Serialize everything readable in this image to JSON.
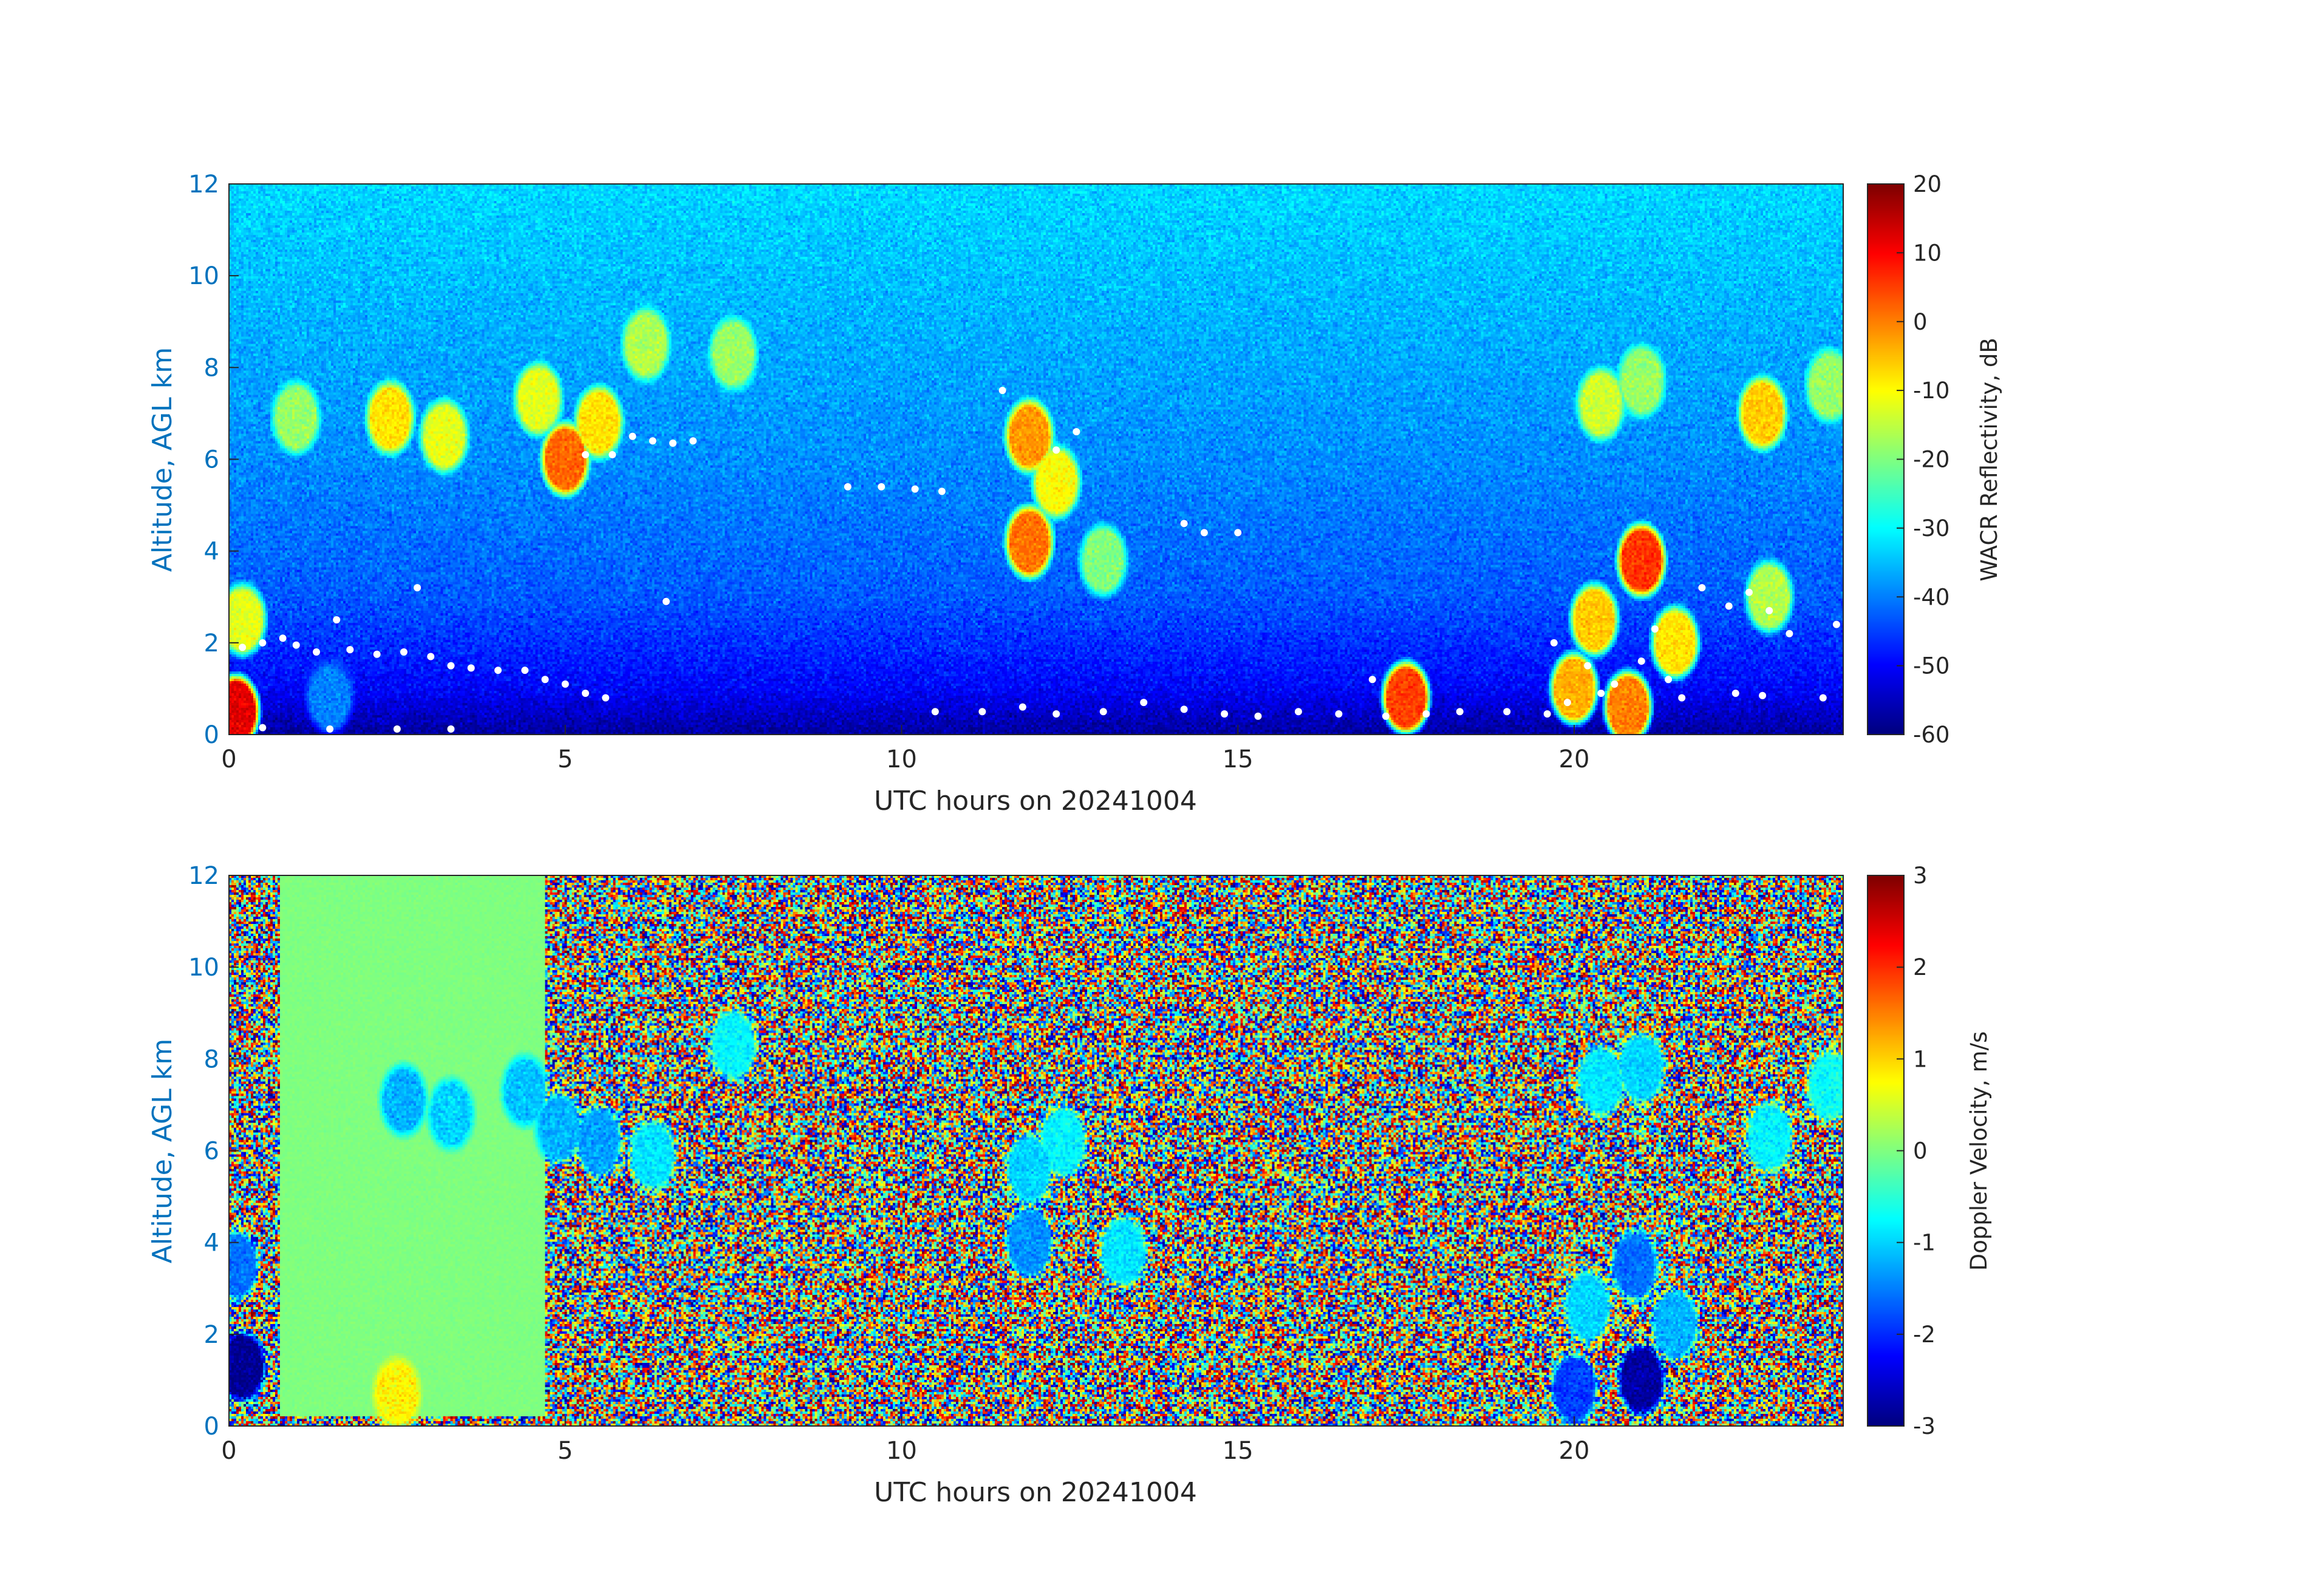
{
  "chart_data": [
    {
      "type": "heatmap",
      "xlabel": "UTC hours on 20241004",
      "ylabel": "Altitude, AGL km",
      "xlim": [
        0,
        24
      ],
      "ylim": [
        0,
        12
      ],
      "xticks": [
        "0",
        "5",
        "10",
        "15",
        "20"
      ],
      "yticks": [
        "0",
        "2",
        "4",
        "6",
        "8",
        "10",
        "12"
      ],
      "colorbar": {
        "label": "WACR Reflectivity, dB",
        "range": [
          -60,
          20
        ],
        "ticks": [
          "20",
          "10",
          "0",
          "-10",
          "-20",
          "-30",
          "-40",
          "-50",
          "-60"
        ],
        "colormap": "jet"
      },
      "background_gradient": [
        {
          "alt": 0,
          "value": -58
        },
        {
          "alt": 1,
          "value": -50
        },
        {
          "alt": 3,
          "value": -43
        },
        {
          "alt": 6,
          "value": -39
        },
        {
          "alt": 9,
          "value": -36
        },
        {
          "alt": 12,
          "value": -33
        }
      ],
      "features": [
        {
          "x": 5.0,
          "y": 6.0,
          "value": 2
        },
        {
          "x": 4.6,
          "y": 7.3,
          "value": -12
        },
        {
          "x": 5.5,
          "y": 6.8,
          "value": -8
        },
        {
          "x": 2.4,
          "y": 6.9,
          "value": -8
        },
        {
          "x": 3.2,
          "y": 6.5,
          "value": -12
        },
        {
          "x": 1.0,
          "y": 6.9,
          "value": -18
        },
        {
          "x": 6.2,
          "y": 8.5,
          "value": -16
        },
        {
          "x": 7.5,
          "y": 8.3,
          "value": -18
        },
        {
          "x": 11.9,
          "y": 6.5,
          "value": -2
        },
        {
          "x": 11.9,
          "y": 4.2,
          "value": 1
        },
        {
          "x": 12.3,
          "y": 5.5,
          "value": -10
        },
        {
          "x": 13.0,
          "y": 3.8,
          "value": -20
        },
        {
          "x": 20.4,
          "y": 7.2,
          "value": -14
        },
        {
          "x": 21.0,
          "y": 7.7,
          "value": -18
        },
        {
          "x": 22.8,
          "y": 7.0,
          "value": -6
        },
        {
          "x": 23.8,
          "y": 7.6,
          "value": -18
        },
        {
          "x": 21.0,
          "y": 3.8,
          "value": 6
        },
        {
          "x": 20.3,
          "y": 2.5,
          "value": -6
        },
        {
          "x": 21.5,
          "y": 2.0,
          "value": -8
        },
        {
          "x": 20.0,
          "y": 1.0,
          "value": -4
        },
        {
          "x": 20.8,
          "y": 0.6,
          "value": 0
        },
        {
          "x": 0.1,
          "y": 0.5,
          "value": 12
        },
        {
          "x": 0.2,
          "y": 2.5,
          "value": -12
        },
        {
          "x": 22.9,
          "y": 3.0,
          "value": -16
        },
        {
          "x": 1.5,
          "y": 0.8,
          "value": -40
        },
        {
          "x": 17.5,
          "y": 0.8,
          "value": 5
        }
      ],
      "overlay_points_color": "#ffffff",
      "overlay_points": [
        [
          0.2,
          1.9
        ],
        [
          0.5,
          2.0
        ],
        [
          0.8,
          2.1
        ],
        [
          1.0,
          1.95
        ],
        [
          1.3,
          1.8
        ],
        [
          1.6,
          2.5
        ],
        [
          1.8,
          1.85
        ],
        [
          2.2,
          1.75
        ],
        [
          2.6,
          1.8
        ],
        [
          3.0,
          1.7
        ],
        [
          3.3,
          1.5
        ],
        [
          3.6,
          1.45
        ],
        [
          4.0,
          1.4
        ],
        [
          4.4,
          1.4
        ],
        [
          4.7,
          1.2
        ],
        [
          5.0,
          1.1
        ],
        [
          5.3,
          0.9
        ],
        [
          5.6,
          0.8
        ],
        [
          2.8,
          3.2
        ],
        [
          6.5,
          2.9
        ],
        [
          5.3,
          6.1
        ],
        [
          5.7,
          6.1
        ],
        [
          6.0,
          6.5
        ],
        [
          6.3,
          6.4
        ],
        [
          6.6,
          6.35
        ],
        [
          6.9,
          6.4
        ],
        [
          9.2,
          5.4
        ],
        [
          9.7,
          5.4
        ],
        [
          10.2,
          5.35
        ],
        [
          10.6,
          5.3
        ],
        [
          11.5,
          7.5
        ],
        [
          12.3,
          6.2
        ],
        [
          12.6,
          6.6
        ],
        [
          14.2,
          4.6
        ],
        [
          14.5,
          4.4
        ],
        [
          15.0,
          4.4
        ],
        [
          10.5,
          0.5
        ],
        [
          11.2,
          0.5
        ],
        [
          11.8,
          0.6
        ],
        [
          12.3,
          0.45
        ],
        [
          13.0,
          0.5
        ],
        [
          13.6,
          0.7
        ],
        [
          14.2,
          0.55
        ],
        [
          14.8,
          0.45
        ],
        [
          15.3,
          0.4
        ],
        [
          15.9,
          0.5
        ],
        [
          16.5,
          0.45
        ],
        [
          17.2,
          0.4
        ],
        [
          17.8,
          0.45
        ],
        [
          18.3,
          0.5
        ],
        [
          19.0,
          0.5
        ],
        [
          19.6,
          0.45
        ],
        [
          17.0,
          1.2
        ],
        [
          19.7,
          2.0
        ],
        [
          20.2,
          1.5
        ],
        [
          20.6,
          1.1
        ],
        [
          21.0,
          1.6
        ],
        [
          21.4,
          1.2
        ],
        [
          21.6,
          0.8
        ],
        [
          21.2,
          2.3
        ],
        [
          21.9,
          3.2
        ],
        [
          22.3,
          2.8
        ],
        [
          22.6,
          3.1
        ],
        [
          22.9,
          2.7
        ],
        [
          23.2,
          2.2
        ],
        [
          23.7,
          0.8
        ],
        [
          23.9,
          2.4
        ],
        [
          22.4,
          0.9
        ],
        [
          22.8,
          0.85
        ],
        [
          19.9,
          0.7
        ],
        [
          20.4,
          0.9
        ],
        [
          0.5,
          0.15
        ],
        [
          1.5,
          0.12
        ],
        [
          2.5,
          0.12
        ],
        [
          3.3,
          0.12
        ]
      ]
    },
    {
      "type": "heatmap",
      "xlabel": "UTC hours on 20241004",
      "ylabel": "Altitude, AGL km",
      "xlim": [
        0,
        24
      ],
      "ylim": [
        0,
        12
      ],
      "xticks": [
        "0",
        "5",
        "10",
        "15",
        "20"
      ],
      "yticks": [
        "0",
        "2",
        "4",
        "6",
        "8",
        "10",
        "12"
      ],
      "colorbar": {
        "label": "Doppler Velocity, m/s",
        "range": [
          -3,
          3
        ],
        "ticks": [
          "3",
          "2",
          "1",
          "0",
          "-1",
          "-2",
          "-3"
        ],
        "colormap": "jet"
      },
      "noise_background": true,
      "uniform_regions": [
        {
          "x0": 0.75,
          "x1": 4.7,
          "y0": 0.2,
          "y1": 12,
          "value": 0.0
        }
      ],
      "features": [
        {
          "x": 4.9,
          "y": 6.5,
          "value": -1.2
        },
        {
          "x": 4.4,
          "y": 7.3,
          "value": -1.1
        },
        {
          "x": 3.3,
          "y": 6.8,
          "value": -1.0
        },
        {
          "x": 2.6,
          "y": 7.1,
          "value": -1.2
        },
        {
          "x": 5.5,
          "y": 6.2,
          "value": -1.3
        },
        {
          "x": 6.3,
          "y": 5.9,
          "value": -0.9
        },
        {
          "x": 7.5,
          "y": 8.3,
          "value": -0.8
        },
        {
          "x": 11.9,
          "y": 5.6,
          "value": -1.0
        },
        {
          "x": 11.9,
          "y": 4.0,
          "value": -1.4
        },
        {
          "x": 12.4,
          "y": 6.2,
          "value": -0.8
        },
        {
          "x": 13.3,
          "y": 3.8,
          "value": -0.9
        },
        {
          "x": 20.4,
          "y": 7.5,
          "value": -0.9
        },
        {
          "x": 21.0,
          "y": 7.8,
          "value": -1.0
        },
        {
          "x": 22.9,
          "y": 6.3,
          "value": -0.8
        },
        {
          "x": 23.8,
          "y": 7.4,
          "value": -0.7
        },
        {
          "x": 20.2,
          "y": 2.6,
          "value": -1.0
        },
        {
          "x": 20.9,
          "y": 3.5,
          "value": -1.6
        },
        {
          "x": 21.5,
          "y": 2.2,
          "value": -1.2
        },
        {
          "x": 21.0,
          "y": 1.0,
          "value": -2.8
        },
        {
          "x": 20.0,
          "y": 0.8,
          "value": -1.9
        },
        {
          "x": 0.2,
          "y": 1.3,
          "value": -2.9
        },
        {
          "x": 0.1,
          "y": 3.5,
          "value": -1.6
        },
        {
          "x": 2.5,
          "y": 0.7,
          "value": 0.8
        }
      ]
    }
  ]
}
